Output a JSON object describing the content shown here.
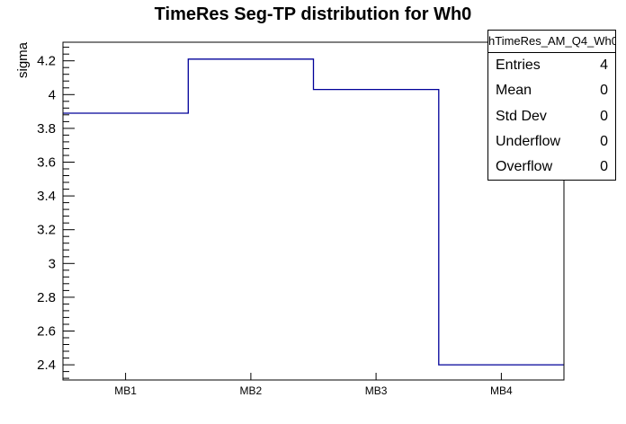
{
  "title": "TimeRes Seg-TP distribution for Wh0",
  "axes": {
    "y_title": "sigma"
  },
  "stats_box": {
    "header": "hTimeRes_AM_Q4_Wh0",
    "rows": [
      {
        "label": "Entries",
        "value": "4"
      },
      {
        "label": "Mean",
        "value": "0"
      },
      {
        "label": "Std Dev",
        "value": "0"
      },
      {
        "label": "Underflow",
        "value": "0"
      },
      {
        "label": "Overflow",
        "value": "0"
      }
    ]
  },
  "chart_data": {
    "type": "bar",
    "subtype": "step-histogram",
    "title": "TimeRes Seg-TP distribution for Wh0",
    "categories": [
      "MB1",
      "MB2",
      "MB3",
      "MB4"
    ],
    "values": [
      3.89,
      4.21,
      4.03,
      2.4
    ],
    "xlabel": "",
    "ylabel": "sigma",
    "ylim": [
      2.31,
      4.31
    ],
    "y_major_ticks": [
      2.4,
      2.6,
      2.8,
      3,
      3.2,
      3.4,
      3.6,
      3.8,
      4,
      4.2
    ],
    "y_tick_labels": [
      "2.4",
      "2.6",
      "2.8",
      "3",
      "3.2",
      "3.4",
      "3.6",
      "3.8",
      "4",
      "4.2"
    ],
    "y_minor_step": 0.04,
    "grid": false,
    "legend": "none",
    "line_color": "#000099",
    "frame_color": "#000000",
    "text_color": "#000000",
    "background": "#ffffff"
  }
}
